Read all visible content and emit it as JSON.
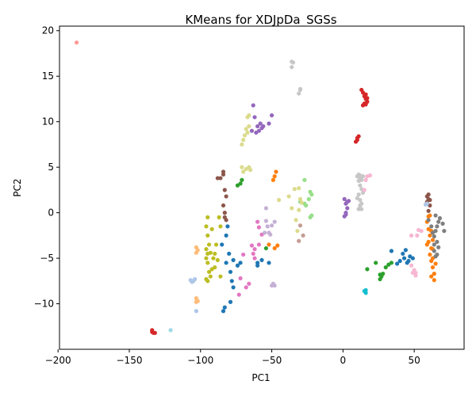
{
  "chart_data": {
    "type": "scatter",
    "title": "KMeans for XDJpDa_SGSs",
    "xlabel": "PC1",
    "ylabel": "PC2",
    "xlim": [
      -199,
      85
    ],
    "ylim": [
      -15,
      20.5
    ],
    "xticks": [
      -200,
      -150,
      -100,
      -50,
      0,
      50
    ],
    "yticks": [
      -10,
      -5,
      0,
      5,
      10,
      15,
      20
    ],
    "grid": false,
    "legend": "none",
    "series": [
      {
        "color": "#1f77b4",
        "points": [
          [
            -85,
            -3.5
          ],
          [
            -82,
            -2.5
          ],
          [
            -81,
            -1.5
          ],
          [
            -80,
            -4.5
          ],
          [
            -82,
            -5.5
          ],
          [
            -79,
            -6.5
          ],
          [
            -78,
            -7.5
          ],
          [
            -77,
            -8.2
          ],
          [
            -79,
            -9.8
          ],
          [
            -84,
            -10.8
          ],
          [
            -83,
            -10.4
          ],
          [
            -77,
            -5.2
          ],
          [
            -74,
            -5.8
          ],
          [
            -72,
            -5.5
          ],
          [
            -60,
            -5.5
          ],
          [
            -57,
            -5.2
          ],
          [
            -52,
            -5.5
          ],
          [
            -60,
            -5.8
          ],
          [
            34,
            -4.2
          ],
          [
            42,
            -4.5
          ],
          [
            44,
            -4.1
          ],
          [
            45,
            -5.5
          ],
          [
            47,
            -4.8
          ],
          [
            49,
            -5.0
          ],
          [
            43,
            -5.0
          ],
          [
            40,
            -5.3
          ],
          [
            38,
            -5.6
          ],
          [
            46,
            -5.3
          ]
        ]
      },
      {
        "color": "#ff7f0e",
        "points": [
          [
            -47,
            4.5
          ],
          [
            -48,
            4.0
          ],
          [
            -49,
            3.6
          ],
          [
            -52,
            -3.5
          ],
          [
            -46,
            -3.6
          ],
          [
            -48,
            -3.9
          ],
          [
            59,
            -1.0
          ],
          [
            60,
            -1.8
          ],
          [
            61,
            -2.5
          ],
          [
            60,
            -3.2
          ],
          [
            62,
            -3.9
          ],
          [
            61,
            -4.6
          ],
          [
            62,
            -5.3
          ],
          [
            63,
            -6.0
          ],
          [
            64,
            -6.7
          ],
          [
            64,
            -7.4
          ],
          [
            62,
            -7.0
          ],
          [
            63,
            -4.0
          ],
          [
            60,
            -0.4
          ],
          [
            61,
            -0.3
          ],
          [
            62,
            -2.0
          ],
          [
            63,
            -3.0
          ],
          [
            59,
            -3.5
          ],
          [
            63,
            -5.0
          ],
          [
            65,
            -5.6
          ]
        ]
      },
      {
        "color": "#2ca02c",
        "points": [
          [
            -74,
            3.0
          ],
          [
            -72,
            3.2
          ],
          [
            -71,
            3.6
          ],
          [
            -54,
            -3.9
          ],
          [
            17,
            -6.2
          ],
          [
            23,
            -5.5
          ],
          [
            26,
            -6.8
          ],
          [
            27,
            -7.0
          ],
          [
            28,
            -6.7
          ],
          [
            30,
            -6.0
          ],
          [
            32,
            -5.7
          ],
          [
            34,
            -5.5
          ],
          [
            26,
            -7.3
          ]
        ]
      },
      {
        "color": "#d62728",
        "points": [
          [
            -134,
            -12.9
          ],
          [
            -133,
            -13.2
          ],
          [
            -134,
            -13.1
          ],
          [
            -132,
            -13.2
          ],
          [
            9,
            7.8
          ],
          [
            10,
            8.2
          ],
          [
            11,
            8.4
          ],
          [
            10,
            8.0
          ],
          [
            13,
            13.5
          ],
          [
            14,
            13.2
          ],
          [
            15,
            12.8
          ],
          [
            16,
            12.5
          ],
          [
            17,
            12.2
          ],
          [
            16,
            11.9
          ],
          [
            17,
            12.6
          ],
          [
            15,
            12.0
          ],
          [
            14,
            11.8
          ],
          [
            16,
            13.0
          ]
        ]
      },
      {
        "color": "#9467bd",
        "points": [
          [
            -63,
            11.8
          ],
          [
            -62,
            10.5
          ],
          [
            -58,
            9.8
          ],
          [
            -56,
            9.5
          ],
          [
            -59,
            9.0
          ],
          [
            -61,
            8.8
          ],
          [
            -64,
            9.0
          ],
          [
            -50,
            10.7
          ],
          [
            -52,
            9.8
          ],
          [
            -60,
            9.5
          ],
          [
            -57,
            9.3
          ],
          [
            1,
            1.5
          ],
          [
            2,
            1.0
          ],
          [
            3,
            0.5
          ],
          [
            2,
            0
          ],
          [
            1,
            -0.4
          ],
          [
            4,
            1.3
          ],
          [
            2,
            -0.2
          ],
          [
            3,
            1.2
          ]
        ]
      },
      {
        "color": "#8c564b",
        "points": [
          [
            -86,
            3.8
          ],
          [
            -84,
            4.2
          ],
          [
            -84,
            4.5
          ],
          [
            -88,
            3.8
          ],
          [
            -83,
            2.5
          ],
          [
            -82,
            1.8
          ],
          [
            -84,
            0.8
          ],
          [
            -83,
            0.0
          ],
          [
            -82,
            -0.8
          ],
          [
            -83,
            -0.5
          ],
          [
            59,
            1.8
          ],
          [
            60,
            2.0
          ],
          [
            61,
            1.4
          ],
          [
            61,
            0.8
          ],
          [
            60,
            0.2
          ],
          [
            59,
            1.2
          ],
          [
            60,
            1.5
          ]
        ]
      },
      {
        "color": "#e377c2",
        "points": [
          [
            -60,
            -1.0
          ],
          [
            -59,
            -1.6
          ],
          [
            -57,
            -2.4
          ],
          [
            -59,
            -3.5
          ],
          [
            -62,
            -4.0
          ],
          [
            -63,
            -4.5
          ],
          [
            -70,
            -4.6
          ],
          [
            -72,
            -7.2
          ],
          [
            -73,
            -9.0
          ],
          [
            -68,
            -8.2
          ],
          [
            -66,
            -7.8
          ],
          [
            -62,
            -5.0
          ],
          [
            -64,
            -3.6
          ]
        ]
      },
      {
        "color": "#7f7f7f",
        "points": [
          [
            60,
            -0.8
          ],
          [
            62,
            -1.5
          ],
          [
            63,
            -2.2
          ],
          [
            64,
            -2.6
          ],
          [
            65,
            -2.0
          ],
          [
            66,
            -1.5
          ],
          [
            67,
            -1.0
          ],
          [
            68,
            -0.6
          ],
          [
            65,
            -0.3
          ],
          [
            70,
            -1.2
          ],
          [
            71,
            -2.0
          ],
          [
            66,
            -3.2
          ],
          [
            64,
            -3.5
          ],
          [
            64,
            -4.2
          ],
          [
            66,
            -4.6
          ],
          [
            67,
            -3.8
          ],
          [
            65,
            -4.8
          ]
        ]
      },
      {
        "color": "#bcbd22",
        "points": [
          [
            -95,
            -0.5
          ],
          [
            -96,
            -1.5
          ],
          [
            -95,
            -2.5
          ],
          [
            -94,
            -3.5
          ],
          [
            -96,
            -4.0
          ],
          [
            -95,
            -4.5
          ],
          [
            -96,
            -5.0
          ],
          [
            -95,
            -5.5
          ],
          [
            -94,
            -6.5
          ],
          [
            -93,
            -7.0
          ],
          [
            -95,
            -7.5
          ],
          [
            -92,
            -6.2
          ],
          [
            -91,
            -5.0
          ],
          [
            -90,
            -4.5
          ],
          [
            -93,
            -4.4
          ],
          [
            -89,
            -3.5
          ],
          [
            -92,
            -1.8
          ],
          [
            -87,
            -0.5
          ],
          [
            -86,
            -1.5
          ],
          [
            -90,
            -6.0
          ],
          [
            -88,
            -5.2
          ],
          [
            -86,
            -7.0
          ],
          [
            -96,
            -7.3
          ]
        ]
      },
      {
        "color": "#17becf",
        "points": [
          [
            16,
            -8.5
          ],
          [
            16,
            -8.8
          ],
          [
            15,
            -8.6
          ]
        ]
      },
      {
        "color": "#aec7e8",
        "points": [
          [
            -107,
            -7.4
          ],
          [
            -106,
            -7.6
          ],
          [
            -105,
            -7.5
          ],
          [
            -104,
            -7.3
          ],
          [
            -103,
            -10.8
          ],
          [
            59,
            1.0
          ],
          [
            58,
            0.9
          ]
        ]
      },
      {
        "color": "#ffbb78",
        "points": [
          [
            -103,
            -3.8
          ],
          [
            -102,
            -4.1
          ],
          [
            -103,
            -4.4
          ],
          [
            -103,
            -9.4
          ],
          [
            -102,
            -9.7
          ],
          [
            -103,
            -9.8
          ]
        ]
      },
      {
        "color": "#98df8a",
        "points": [
          [
            -27,
            3.6
          ],
          [
            -30,
            1.2
          ],
          [
            -27,
            1.0
          ],
          [
            -23,
            2.3
          ],
          [
            -22,
            2.0
          ],
          [
            -24,
            1.5
          ],
          [
            -26,
            0.8
          ],
          [
            -23,
            -0.5
          ],
          [
            -22,
            -0.3
          ]
        ]
      },
      {
        "color": "#ff9896",
        "points": [
          [
            -187,
            18.7
          ]
        ]
      },
      {
        "color": "#c5b0d5",
        "points": [
          [
            -54,
            0.5
          ],
          [
            -54,
            -0.9
          ],
          [
            -53,
            -1.5
          ],
          [
            -55,
            -2.2
          ],
          [
            -51,
            -2.4
          ],
          [
            -52,
            -2.2
          ],
          [
            -50,
            -1.4
          ],
          [
            -48,
            -1.0
          ],
          [
            -49,
            -7.8
          ],
          [
            -50,
            -8.0
          ],
          [
            -48,
            -8.0
          ]
        ]
      },
      {
        "color": "#c49c94",
        "points": [
          [
            -30,
            -1.4
          ],
          [
            -28,
            -2.5
          ],
          [
            -31,
            -3.1
          ]
        ]
      },
      {
        "color": "#f7b6d2",
        "points": [
          [
            48,
            -5.8
          ],
          [
            50,
            -6.3
          ],
          [
            51,
            -6.6
          ],
          [
            51,
            -6.9
          ],
          [
            49,
            -6.6
          ],
          [
            53,
            -1.9
          ],
          [
            52,
            -2.5
          ],
          [
            55,
            -2.0
          ],
          [
            48,
            -2.5
          ]
        ]
      },
      {
        "color": "#c7c7c7",
        "points": [
          [
            -36,
            16
          ],
          [
            -36,
            16.6
          ],
          [
            -35,
            16.5
          ],
          [
            -31,
            13.1
          ],
          [
            -30,
            13.6
          ],
          [
            -30,
            13.5
          ],
          [
            10,
            4.0
          ],
          [
            11,
            4.2
          ],
          [
            12,
            4.1
          ],
          [
            11,
            3.5
          ],
          [
            12,
            3.0
          ],
          [
            11,
            2.0
          ],
          [
            12,
            1.4
          ],
          [
            13,
            1.0
          ],
          [
            12,
            0.8
          ],
          [
            13,
            0.4
          ],
          [
            11,
            0.4
          ],
          [
            10,
            1.6
          ],
          [
            13,
            3.6
          ],
          [
            14,
            2.2
          ],
          [
            12,
            3.8
          ],
          [
            14,
            4.0
          ],
          [
            13,
            2.6
          ]
        ]
      },
      {
        "color": "#dbdb8d",
        "points": [
          [
            -71,
            7.5
          ],
          [
            -70,
            8.0
          ],
          [
            -69,
            8.5
          ],
          [
            -68,
            9.2
          ],
          [
            -66,
            9.5
          ],
          [
            -67,
            8.8
          ],
          [
            -71,
            5.0
          ],
          [
            -70,
            4.5
          ],
          [
            -68,
            4.8
          ],
          [
            -66,
            5.0
          ],
          [
            -65,
            4.7
          ],
          [
            -67,
            10.5
          ],
          [
            -66,
            10.7
          ],
          [
            -45,
            1.4
          ],
          [
            -38,
            1.8
          ],
          [
            -36,
            0.5
          ],
          [
            -33,
            -0.8
          ],
          [
            -32,
            -2.0
          ],
          [
            -30,
            1.5
          ],
          [
            -31,
            2.7
          ],
          [
            -29,
            1.1
          ],
          [
            -34,
            2.6
          ],
          [
            -31,
            0.3
          ]
        ]
      },
      {
        "color": "#9edae5",
        "points": [
          [
            -121,
            -12.9
          ]
        ]
      },
      {
        "color": "#f7b6d2",
        "points": [
          [
            17,
            4.0
          ],
          [
            19,
            4.1
          ],
          [
            16,
            3.6
          ],
          [
            15,
            2.5
          ]
        ]
      }
    ]
  }
}
